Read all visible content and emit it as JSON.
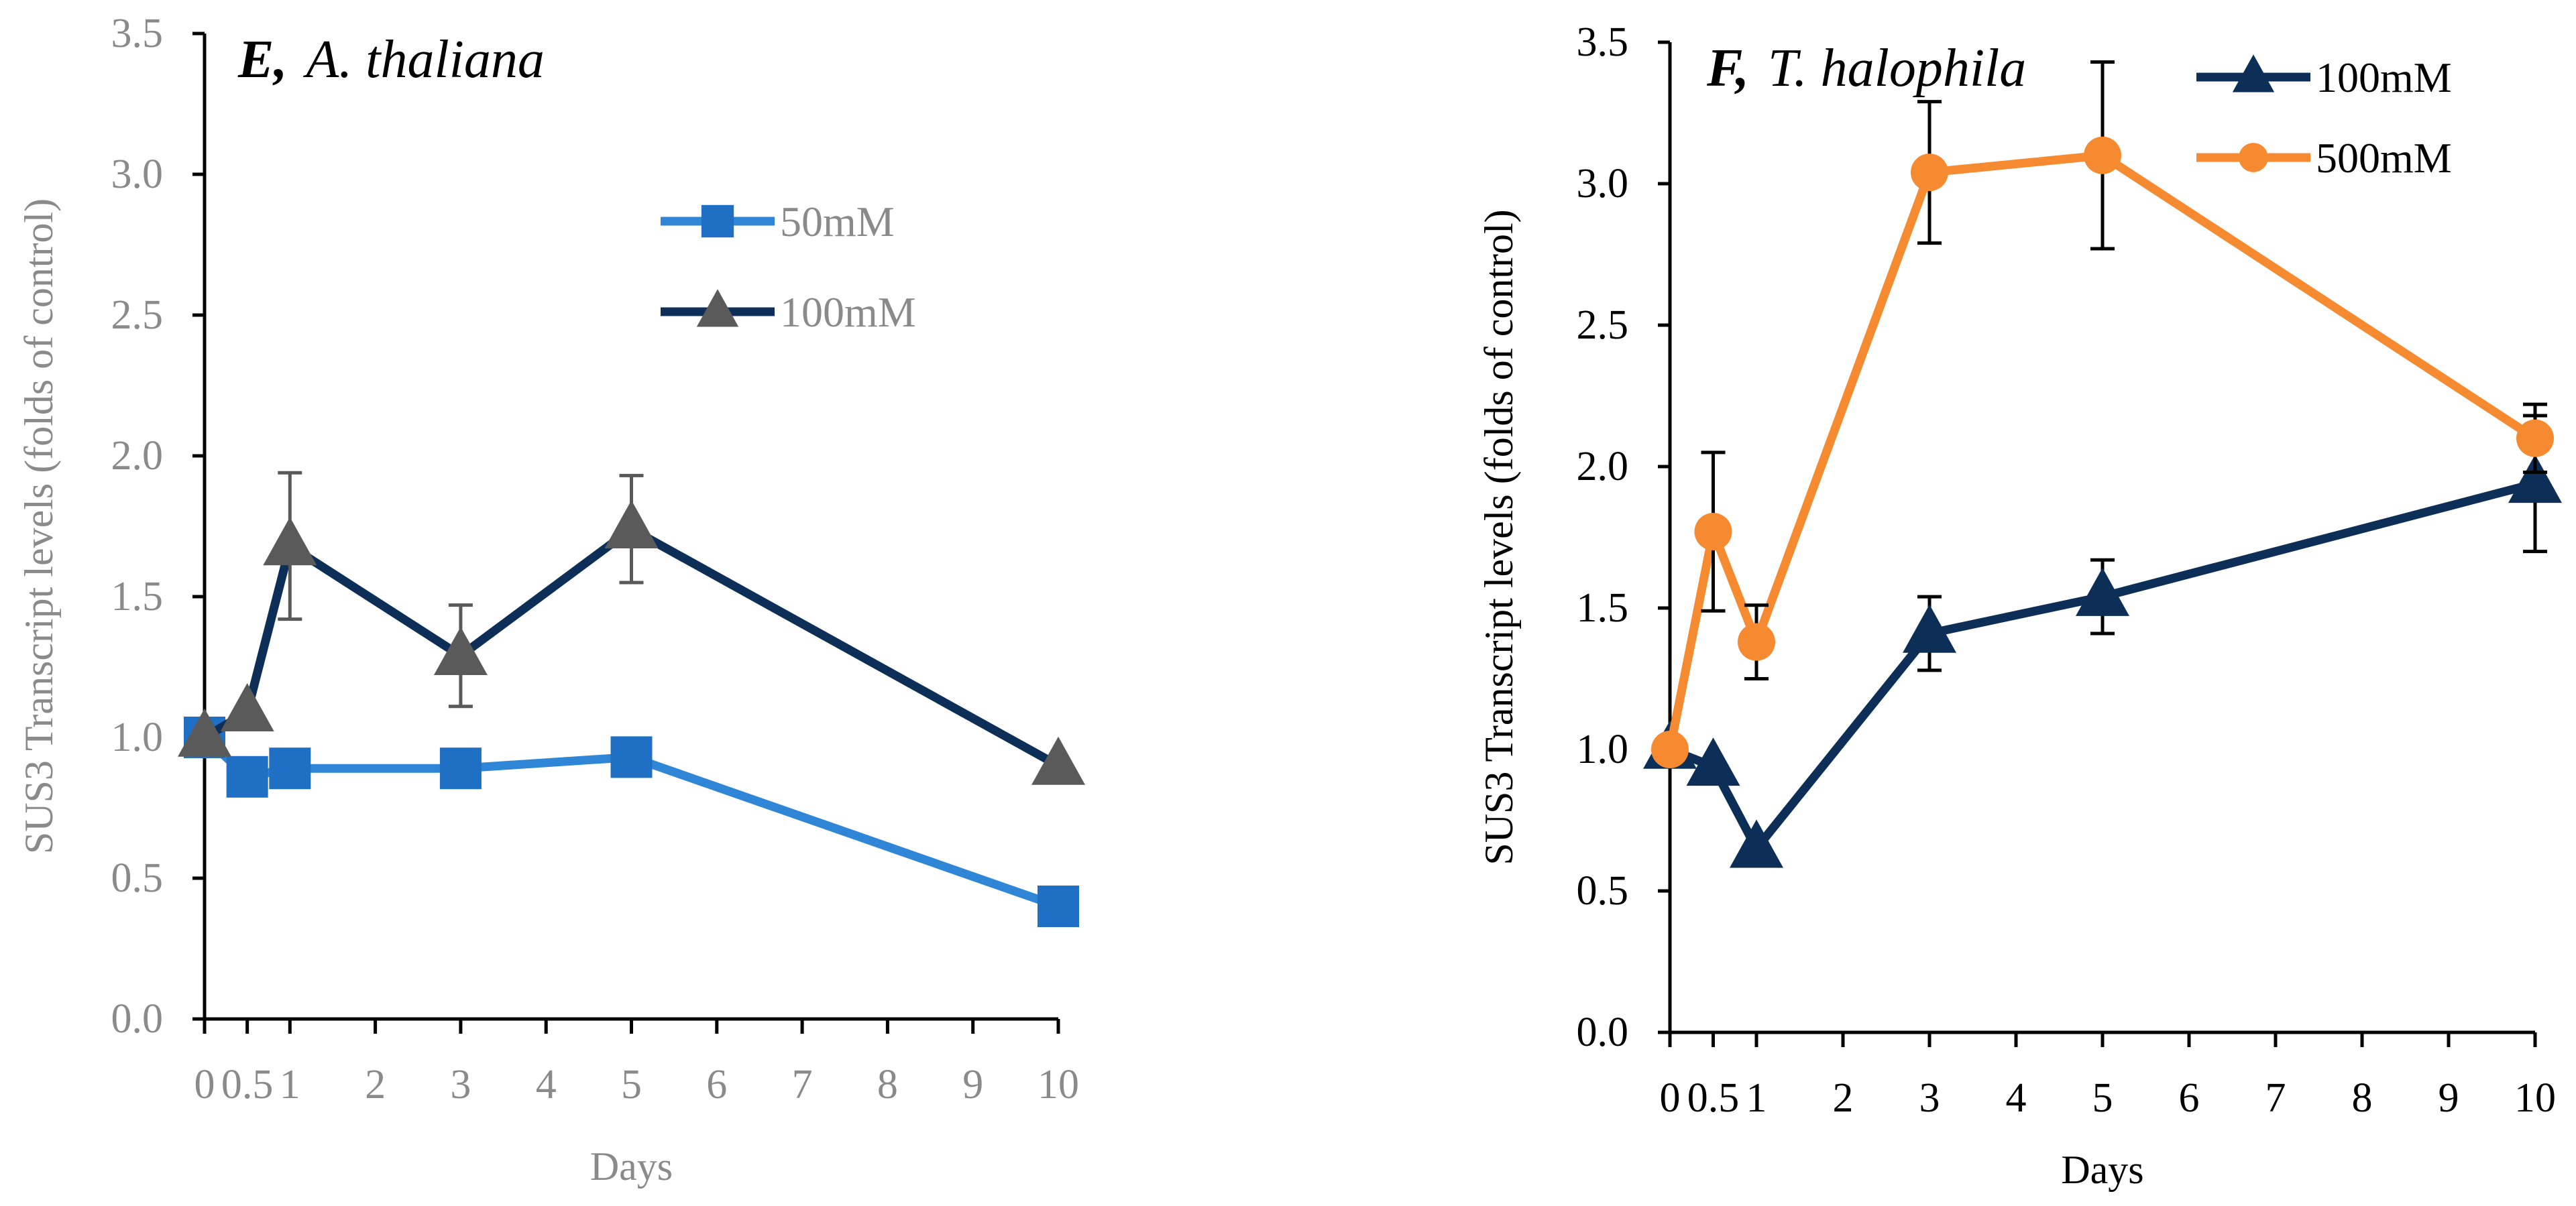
{
  "chart_data": [
    {
      "type": "line",
      "panel_label": "E,",
      "title": "A. thaliana",
      "ylabel": "SUS3 Transcript levels (folds of control)",
      "xlabel": "Days",
      "ylim": [
        0,
        3.5
      ],
      "yticks": [
        "0.0",
        "0.5",
        "1.0",
        "1.5",
        "2.0",
        "2.5",
        "3.0",
        "3.5"
      ],
      "xticks": [
        "0",
        "0.5",
        "1",
        "2",
        "3",
        "4",
        "5",
        "6",
        "7",
        "8",
        "9",
        "10"
      ],
      "x": [
        0,
        0.5,
        1,
        3,
        5,
        10
      ],
      "legend_position": "top-right",
      "axis_color": "#000000",
      "tick_label_color": "#8a8a8a",
      "series": [
        {
          "name": "50mM",
          "marker": "square",
          "line_color": "#2f86d6",
          "marker_color": "#1f6fc4",
          "values": [
            1.0,
            0.86,
            0.89,
            0.89,
            0.93,
            0.4
          ],
          "errors": [
            null,
            null,
            null,
            null,
            null,
            null
          ]
        },
        {
          "name": "100mM",
          "marker": "triangle",
          "line_color": "#0d2f57",
          "marker_color": "#5a5a5a",
          "values": [
            1.0,
            1.09,
            1.68,
            1.29,
            1.74,
            0.9
          ],
          "errors": [
            null,
            null,
            0.26,
            0.18,
            0.19,
            null
          ],
          "error_color": "#595959"
        }
      ]
    },
    {
      "type": "line",
      "panel_label": "F,",
      "title": "T. halophila",
      "ylabel": "SUS3 Transcript levels (folds of control)",
      "xlabel": "Days",
      "ylim": [
        0,
        3.5
      ],
      "yticks": [
        "0.0",
        "0.5",
        "1.0",
        "1.5",
        "2.0",
        "2.5",
        "3.0",
        "3.5"
      ],
      "xticks": [
        "0",
        "0.5",
        "1",
        "2",
        "3",
        "4",
        "5",
        "6",
        "7",
        "8",
        "9",
        "10"
      ],
      "x": [
        0,
        0.5,
        1,
        3,
        5,
        10
      ],
      "legend_position": "top-right",
      "axis_color": "#000000",
      "tick_label_color": "#000000",
      "series": [
        {
          "name": "100mM",
          "marker": "triangle",
          "line_color": "#0d2f57",
          "marker_color": "#0d2f57",
          "values": [
            1.0,
            0.94,
            0.65,
            1.41,
            1.54,
            1.94
          ],
          "errors": [
            null,
            null,
            null,
            0.13,
            0.13,
            0.24
          ],
          "error_color": "#000000"
        },
        {
          "name": "500mM",
          "marker": "circle",
          "line_color": "#f58a30",
          "marker_color": "#f58a30",
          "values": [
            1.0,
            1.77,
            1.38,
            3.04,
            3.1,
            2.1
          ],
          "errors": [
            null,
            0.28,
            0.13,
            0.25,
            0.33,
            0.12
          ],
          "error_color": "#000000"
        }
      ]
    }
  ]
}
